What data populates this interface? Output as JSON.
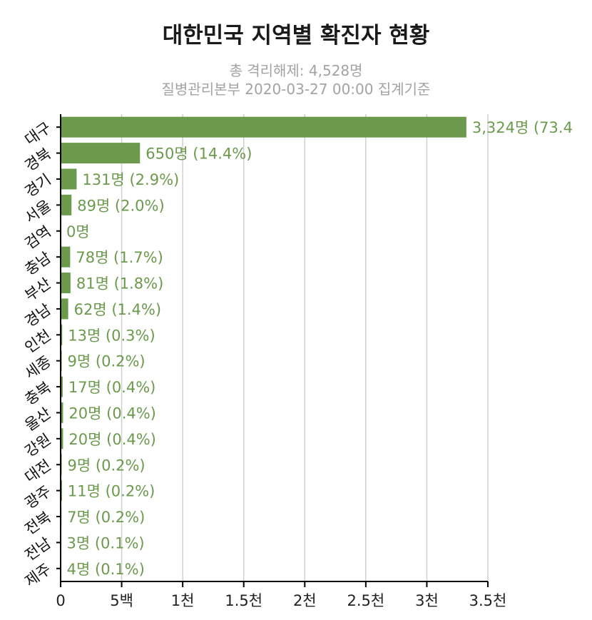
{
  "chart_data": {
    "type": "bar",
    "orientation": "horizontal",
    "title": "대한민국 지역별 확진자 현황",
    "subtitle_lines": [
      "총 격리해제: 4,528명",
      "질병관리본부 2020-03-27 00:00 집계기준"
    ],
    "categories": [
      "대구",
      "경북",
      "경기",
      "서울",
      "검역",
      "충남",
      "부산",
      "경남",
      "인천",
      "세종",
      "충북",
      "울산",
      "강원",
      "대전",
      "광주",
      "전북",
      "전남",
      "제주"
    ],
    "values": [
      3324,
      650,
      131,
      89,
      0,
      78,
      81,
      62,
      13,
      9,
      17,
      20,
      20,
      9,
      11,
      7,
      3,
      4
    ],
    "data_labels": [
      "3,324명 (73.4",
      "650명 (14.4%)",
      "131명 (2.9%)",
      "89명 (2.0%)",
      "0명",
      "78명 (1.7%)",
      "81명 (1.8%)",
      "62명 (1.4%)",
      "13명 (0.3%)",
      "9명 (0.2%)",
      "17명 (0.4%)",
      "20명 (0.4%)",
      "20명 (0.4%)",
      "9명 (0.2%)",
      "11명 (0.2%)",
      "7명 (0.2%)",
      "3명 (0.1%)",
      "4명 (0.1%)"
    ],
    "x_ticks": [
      0,
      500,
      1000,
      1500,
      2000,
      2500,
      3000,
      3500
    ],
    "x_tick_labels": [
      "0",
      "5백",
      "1천",
      "1.5천",
      "2천",
      "2.5천",
      "3천",
      "3.5천"
    ],
    "xlim": [
      0,
      3500
    ],
    "grid": "vertical",
    "bar_color": "#6b9a4d"
  }
}
